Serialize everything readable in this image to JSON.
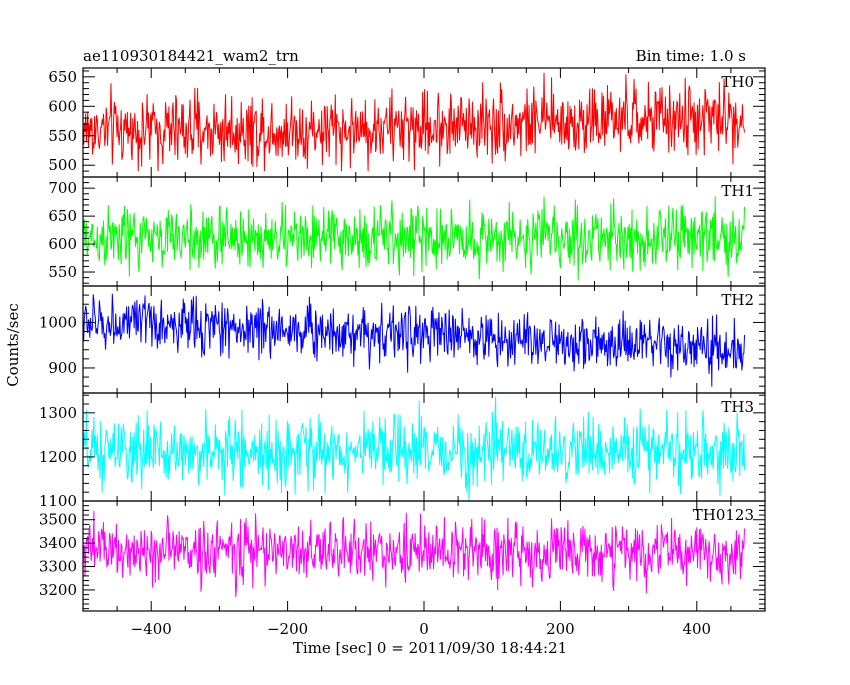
{
  "header": {
    "title": "ae110930184421_wam2_trn",
    "bin_time": "Bin time: 1.0 s"
  },
  "chart_data": {
    "type": "line",
    "title": "ae110930184421_wam2_trn",
    "subtitle": "Bin time: 1.0 s",
    "xlabel": "Time [sec] 0 = 2011/09/30 18:44:21",
    "ylabel": "Counts/sec",
    "xlim": [
      -500,
      500
    ],
    "x_ticks": [
      -400,
      -200,
      0,
      200,
      400
    ],
    "x_tick_labels": [
      "−400",
      "−200",
      "0",
      "200",
      "400"
    ],
    "grid": false,
    "panels": [
      {
        "name": "TH0",
        "color": "#ff0000",
        "ylim": [
          480,
          665
        ],
        "y_ticks": [
          500,
          550,
          600,
          650
        ],
        "y_tick_labels": [
          "500",
          "550",
          "600",
          "650"
        ],
        "series": [
          {
            "name": "TH0",
            "x_start": -500,
            "x_end": 470,
            "dx": 1,
            "trend": [
              {
                "x": -500,
                "y": 560
              },
              {
                "x": -100,
                "y": 560
              },
              {
                "x": 100,
                "y": 572
              },
              {
                "x": 470,
                "y": 580
              }
            ],
            "spread": 30,
            "min": 490,
            "max": 665
          }
        ]
      },
      {
        "name": "TH1",
        "color": "#00ff00",
        "ylim": [
          525,
          720
        ],
        "y_ticks": [
          550,
          600,
          650,
          700
        ],
        "y_tick_labels": [
          "550",
          "600",
          "650",
          "700"
        ],
        "series": [
          {
            "name": "TH1",
            "x_start": -500,
            "x_end": 470,
            "dx": 1,
            "trend": [
              {
                "x": -500,
                "y": 610
              },
              {
                "x": 470,
                "y": 612
              }
            ],
            "spread": 28,
            "min": 535,
            "max": 715
          }
        ]
      },
      {
        "name": "TH2",
        "color": "#0000ff",
        "ylim": [
          845,
          1080
        ],
        "y_ticks": [
          900,
          1000
        ],
        "y_tick_labels": [
          "900",
          "1000"
        ],
        "series": [
          {
            "name": "TH2",
            "x_start": -500,
            "x_end": 470,
            "dx": 1,
            "trend": [
              {
                "x": -500,
                "y": 1000
              },
              {
                "x": 0,
                "y": 975
              },
              {
                "x": 470,
                "y": 935
              }
            ],
            "spread": 30,
            "min": 850,
            "max": 1080
          }
        ]
      },
      {
        "name": "TH3",
        "color": "#00ffff",
        "ylim": [
          1100,
          1345
        ],
        "y_ticks": [
          1100,
          1200,
          1300
        ],
        "y_tick_labels": [
          "1100",
          "1200",
          "1300"
        ],
        "series": [
          {
            "name": "TH3",
            "x_start": -500,
            "x_end": 470,
            "dx": 1,
            "trend": [
              {
                "x": -500,
                "y": 1210
              },
              {
                "x": 470,
                "y": 1215
              }
            ],
            "spread": 38,
            "min": 1100,
            "max": 1340
          }
        ]
      },
      {
        "name": "TH0123",
        "color": "#ff00ff",
        "ylim": [
          3110,
          3580
        ],
        "y_ticks": [
          3200,
          3300,
          3400,
          3500
        ],
        "y_tick_labels": [
          "3200",
          "3300",
          "3400",
          "3500"
        ],
        "series": [
          {
            "name": "TH0123",
            "x_start": -500,
            "x_end": 470,
            "dx": 1,
            "trend": [
              {
                "x": -500,
                "y": 3370
              },
              {
                "x": 470,
                "y": 3360
              }
            ],
            "spread": 65,
            "min": 3120,
            "max": 3570
          }
        ]
      }
    ]
  }
}
